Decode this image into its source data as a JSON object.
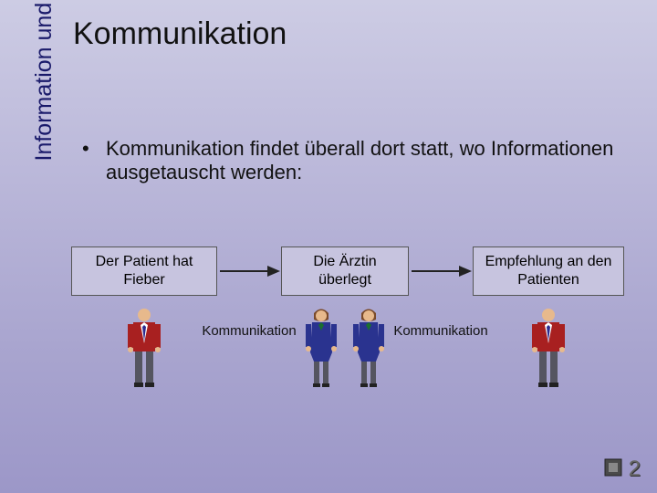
{
  "sidebar_title": "Information und Kommunikation",
  "title": "Kommunikation",
  "bullet_text": "Kommunikation findet überall dort statt, wo Informationen ausgetauscht werden:",
  "diagram": {
    "boxes": [
      "Der Patient hat Fieber",
      "Die Ärztin überlegt",
      "Empfehlung an den Patienten"
    ],
    "arrow_labels": [
      "Kommunikation",
      "Kommunikation"
    ],
    "box_bg": "#c7c4df",
    "box_border": "#555555",
    "arrow_color": "#222222",
    "figures": [
      {
        "role": "male",
        "suit": "#a82020",
        "tie": "#2b2b90",
        "head": "#e7b98c",
        "pants": "#555560"
      },
      {
        "role": "female",
        "suit": "#2a338f",
        "neck": "#1a6e30",
        "head": "#e7b98c",
        "hair": "#7a4a2a",
        "pants": "#555560"
      },
      {
        "role": "female",
        "suit": "#2a338f",
        "neck": "#1a6e30",
        "head": "#e7b98c",
        "hair": "#7a4a2a",
        "pants": "#555560"
      },
      {
        "role": "male",
        "suit": "#a82020",
        "tie": "#2b2b90",
        "head": "#e7b98c",
        "pants": "#555560"
      }
    ]
  },
  "page_number": "2",
  "colors": {
    "bg_grad_top": "#cdcce4",
    "bg_grad_bottom": "#9c97c8",
    "title_color": "#111111",
    "sidebar_color": "#1a1a6a"
  },
  "fonts": {
    "title_size_pt": 26,
    "body_size_pt": 17,
    "box_size_pt": 12,
    "label_size_pt": 11
  }
}
